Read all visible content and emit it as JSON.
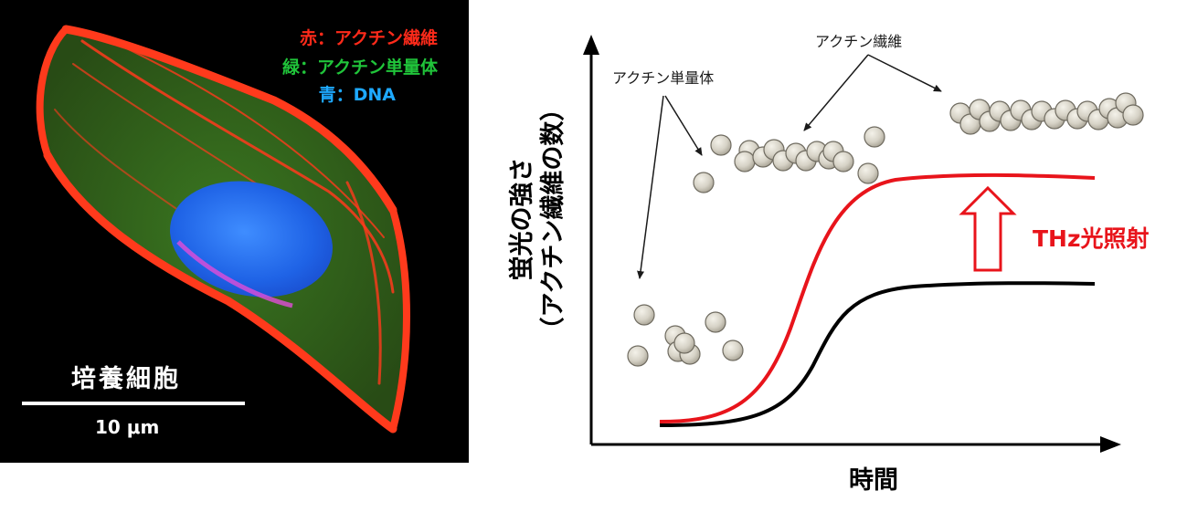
{
  "micrograph": {
    "legend": {
      "red": "赤：アクチン繊維",
      "green": "緑：アクチン単量体",
      "blue": "青：DNA"
    },
    "sample_label": "培養細胞",
    "scale_label": "10 μm",
    "colors": {
      "red": "#ff2a1a",
      "green": "#20c43a",
      "blue": "#1ea9ff"
    }
  },
  "diagram": {
    "label_monomer": "アクチン単量体",
    "label_filament": "アクチン繊維",
    "y_axis_line1": "蛍光の強さ",
    "y_axis_line2": "（アクチン繊維の数）",
    "x_axis": "時間",
    "thz_label": "THz光照射",
    "colors": {
      "thz_curve": "#e8141b",
      "baseline_curve": "#000000",
      "sphere": "#d6d2c6"
    }
  }
}
